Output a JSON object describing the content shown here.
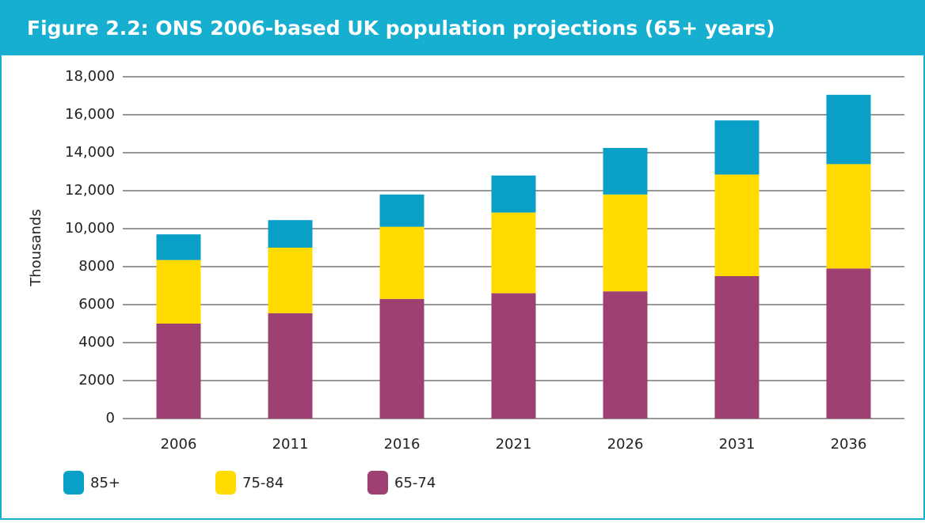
{
  "chart_data": {
    "type": "stacked_bar",
    "title": "Figure 2.2: ONS 2006-based UK population projections (65+ years)",
    "y_label": "Thousands",
    "categories": [
      "2006",
      "2011",
      "2016",
      "2021",
      "2026",
      "2031",
      "2036"
    ],
    "series": [
      {
        "name": "85+",
        "color": "#0a9fc7",
        "values": [
          1350,
          1450,
          1700,
          1950,
          2450,
          2850,
          3650
        ]
      },
      {
        "name": "75-84",
        "color": "#ffdb00",
        "values": [
          3350,
          3450,
          3800,
          4250,
          5100,
          5350,
          5500
        ]
      },
      {
        "name": "65-74",
        "color": "#9e4172",
        "values": [
          5000,
          5550,
          6300,
          6600,
          6700,
          7500,
          7900
        ]
      }
    ],
    "ylim": [
      0,
      18000
    ],
    "yticks": [
      0,
      2000,
      4000,
      6000,
      8000,
      {
        "value": 10000,
        "label": "10,000"
      },
      {
        "value": 12000,
        "label": "12,000"
      },
      {
        "value": 14000,
        "label": "14,000"
      },
      {
        "value": 16000,
        "label": "16,000"
      },
      {
        "value": 18000,
        "label": "18,000"
      }
    ],
    "grid": true
  }
}
